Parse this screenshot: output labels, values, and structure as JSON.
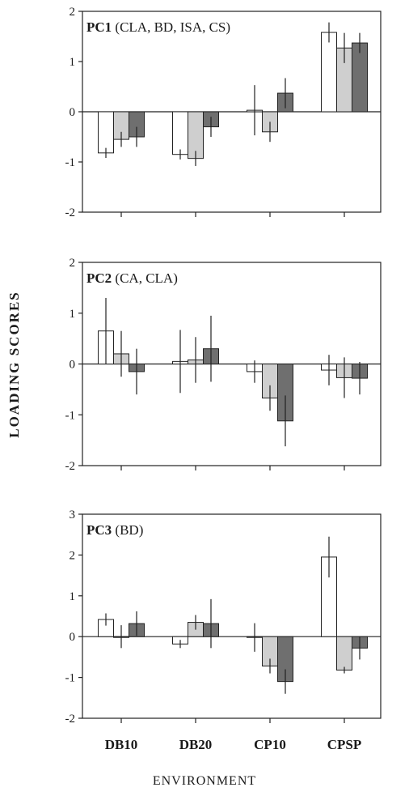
{
  "colors": {
    "white": "#ffffff",
    "light_gray": "#cfcfcf",
    "dark_gray": "#6f6f6f",
    "axis": "#222222"
  },
  "y_axis_label": "LOADING SCORES",
  "x_axis_label": "ENVIRONMENT",
  "chart_data": [
    {
      "type": "bar",
      "title_bold": "PC1",
      "title_rest": "(CLA, BD, ISA, CS)",
      "categories": [
        "DB10",
        "DB20",
        "CP10",
        "CPSP"
      ],
      "show_category_labels": false,
      "ylim": [
        -2,
        2
      ],
      "yticks": [
        -2,
        -1,
        0,
        1,
        2
      ],
      "series": [
        {
          "fill": "white",
          "values": [
            -0.82,
            -0.85,
            0.03,
            1.58
          ],
          "errors": [
            0.1,
            0.1,
            0.5,
            0.2
          ]
        },
        {
          "fill": "light_gray",
          "values": [
            -0.55,
            -0.93,
            -0.4,
            1.27
          ],
          "errors": [
            0.15,
            0.15,
            0.2,
            0.3
          ]
        },
        {
          "fill": "dark_gray",
          "values": [
            -0.5,
            -0.3,
            0.37,
            1.37
          ],
          "errors": [
            0.2,
            0.2,
            0.3,
            0.2
          ]
        }
      ]
    },
    {
      "type": "bar",
      "title_bold": "PC2",
      "title_rest": "(CA, CLA)",
      "categories": [
        "DB10",
        "DB20",
        "CP10",
        "CPSP"
      ],
      "show_category_labels": false,
      "ylim": [
        -2,
        2
      ],
      "yticks": [
        -2,
        -1,
        0,
        1,
        2
      ],
      "series": [
        {
          "fill": "white",
          "values": [
            0.65,
            0.05,
            -0.15,
            -0.12
          ],
          "errors": [
            0.65,
            0.62,
            0.22,
            0.3
          ]
        },
        {
          "fill": "light_gray",
          "values": [
            0.2,
            0.08,
            -0.67,
            -0.27
          ],
          "errors": [
            0.45,
            0.45,
            0.25,
            0.4
          ]
        },
        {
          "fill": "dark_gray",
          "values": [
            -0.15,
            0.3,
            -1.12,
            -0.28
          ],
          "errors": [
            0.45,
            0.65,
            0.5,
            0.32
          ]
        }
      ]
    },
    {
      "type": "bar",
      "title_bold": "PC3",
      "title_rest": "(BD)",
      "categories": [
        "DB10",
        "DB20",
        "CP10",
        "CPSP"
      ],
      "show_category_labels": true,
      "ylim": [
        -2,
        3
      ],
      "yticks": [
        -2,
        -1,
        0,
        1,
        2,
        3
      ],
      "series": [
        {
          "fill": "white",
          "values": [
            0.42,
            -0.18,
            -0.02,
            1.95
          ],
          "errors": [
            0.15,
            0.1,
            0.35,
            0.5
          ]
        },
        {
          "fill": "light_gray",
          "values": [
            0.0,
            0.35,
            -0.72,
            -0.82
          ],
          "errors": [
            0.28,
            0.18,
            0.18,
            0.08
          ]
        },
        {
          "fill": "dark_gray",
          "values": [
            0.32,
            0.32,
            -1.1,
            -0.28
          ],
          "errors": [
            0.3,
            0.6,
            0.3,
            0.28
          ]
        }
      ]
    }
  ]
}
